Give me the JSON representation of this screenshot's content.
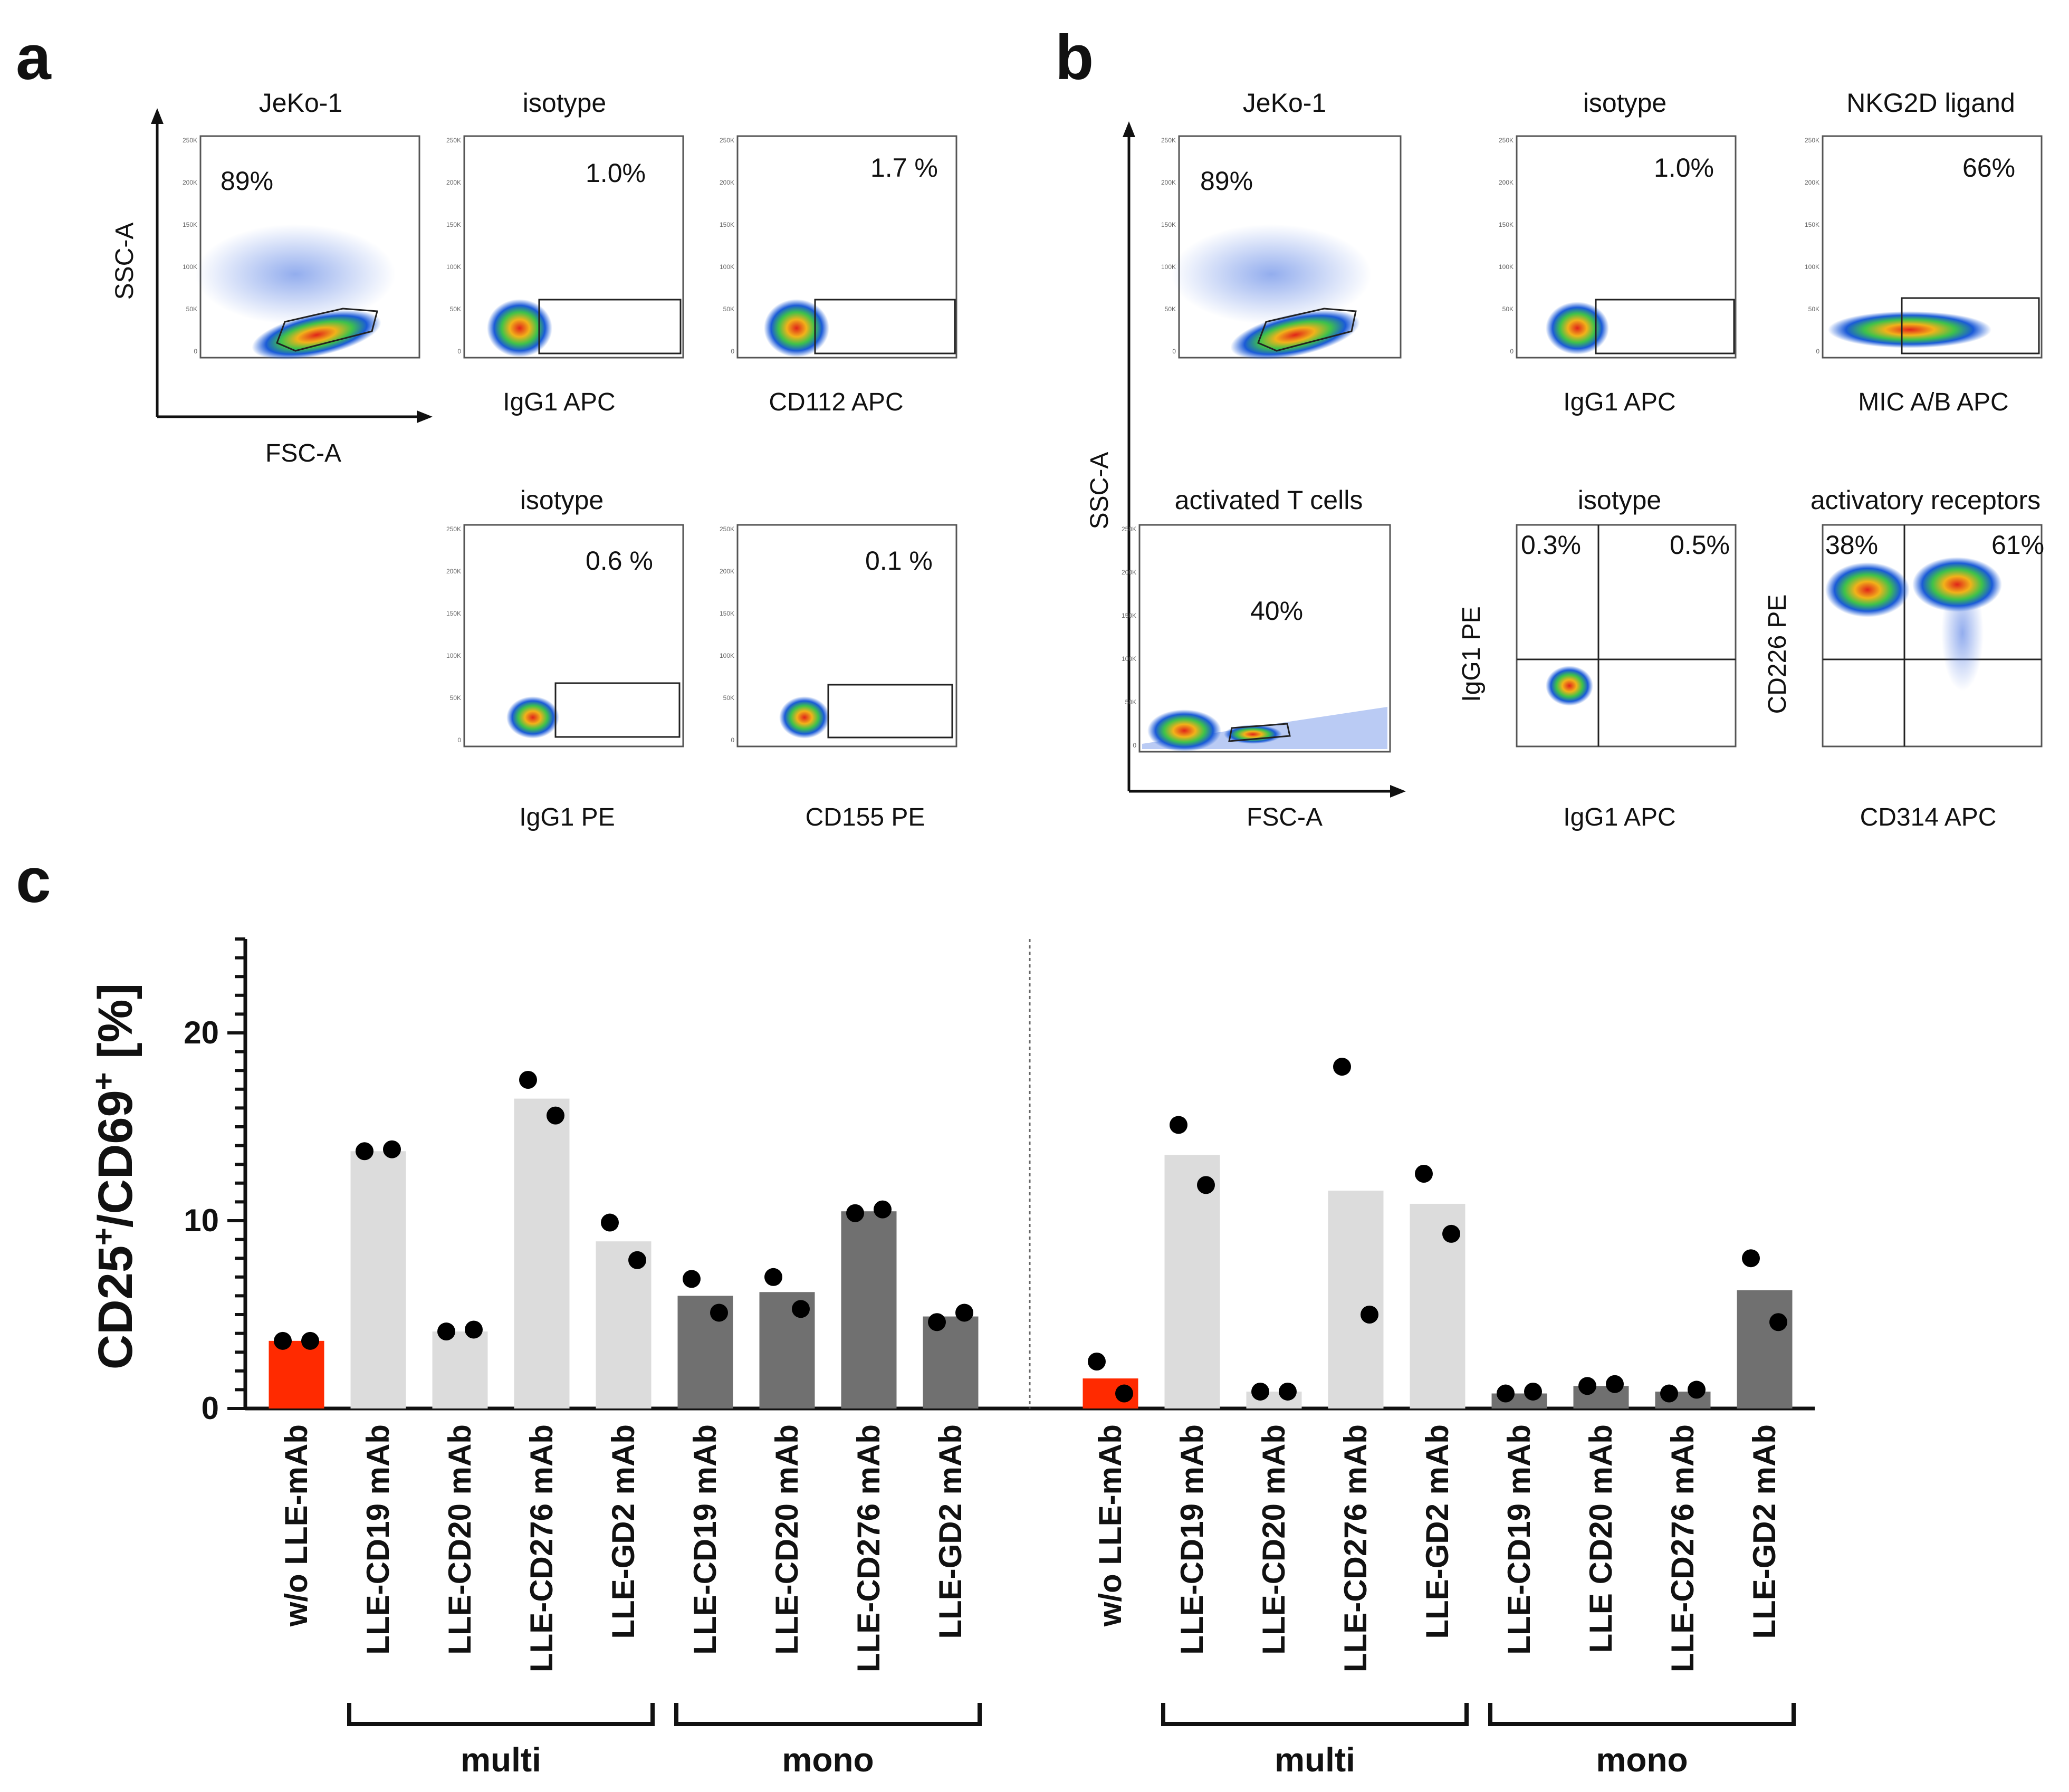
{
  "panels": {
    "a": "a",
    "b": "b",
    "c": "c"
  },
  "flow": {
    "ssc_label": "SSC-A",
    "fsc_label": "FSC-A",
    "panel_a": [
      {
        "title": "JeKo-1",
        "value": "89%",
        "xlabel": "FSC-A"
      },
      {
        "title": "isotype",
        "value": "1.0%",
        "xlabel": "IgG1 APC"
      },
      {
        "title": "",
        "value": "1.7 %",
        "xlabel": "CD112 APC"
      },
      {
        "title": "isotype",
        "value": "0.6 %",
        "xlabel": "IgG1 PE"
      },
      {
        "title": "",
        "value": "0.1 %",
        "xlabel": "CD155 PE"
      }
    ],
    "panel_b": [
      {
        "title": "JeKo-1",
        "value": "89%"
      },
      {
        "title": "isotype",
        "value": "1.0%",
        "xlabel": "IgG1 APC"
      },
      {
        "title": "NKG2D ligand",
        "value": "66%",
        "xlabel": "MIC A/B APC"
      },
      {
        "title": "activated T cells",
        "value": "40%",
        "xlabel": "FSC-A"
      },
      {
        "title": "isotype",
        "q1": "0.3%",
        "q2": "0.5%",
        "xlabel": "IgG1 APC",
        "ylabel": "IgG1 PE"
      },
      {
        "title": "activatory receptors",
        "q1": "38%",
        "q2": "61%",
        "xlabel": "CD314 APC",
        "ylabel": "CD226 PE"
      }
    ],
    "ticks": [
      "250K",
      "200K",
      "150K",
      "100K",
      "50K",
      "0"
    ]
  },
  "chart_data": {
    "type": "bar",
    "title": "",
    "ylabel_main": "CD25",
    "ylabel_sup1": "+",
    "ylabel_mid": "/CD69",
    "ylabel_sup2": "+",
    "ylabel_tail": " [%]",
    "ylim": [
      0,
      25
    ],
    "yticks": [
      "0",
      "10",
      "20"
    ],
    "categories": [
      "w/o LLE-mAb",
      "LLE-CD19 mAb",
      "LLE-CD20 mAb",
      "LLE-CD276 mAb",
      "LLE-GD2 mAb",
      "LLE-CD19 mAb",
      "LLE-CD20 mAb",
      "LLE-CD276 mAb",
      "LLE-GD2 mAb",
      "w/o LLE-mAb",
      "LLE-CD19 mAb",
      "LLE-CD20 mAb",
      "LLE-CD276 mAb",
      "LLE-GD2 mAb",
      "LLE-CD19 mAb",
      "LLE CD20 mAb",
      "LLE-CD276 mAb",
      "LLE-GD2 mAb"
    ],
    "values": [
      3.6,
      13.7,
      4.1,
      16.5,
      8.9,
      6.0,
      6.2,
      10.5,
      4.9,
      1.6,
      13.5,
      0.9,
      11.6,
      10.9,
      0.8,
      1.2,
      0.9,
      6.3
    ],
    "points": [
      [
        3.6,
        3.6
      ],
      [
        13.7,
        13.8
      ],
      [
        4.1,
        4.2
      ],
      [
        17.5,
        15.6
      ],
      [
        9.9,
        7.9
      ],
      [
        6.9,
        5.1
      ],
      [
        7.0,
        5.3
      ],
      [
        10.4,
        10.6
      ],
      [
        4.6,
        5.1
      ],
      [
        2.5,
        0.8
      ],
      [
        15.1,
        11.9
      ],
      [
        0.9,
        0.9
      ],
      [
        18.2,
        5.0
      ],
      [
        12.5,
        9.3
      ],
      [
        0.8,
        0.9
      ],
      [
        1.2,
        1.3
      ],
      [
        0.8,
        1.0
      ],
      [
        8.0,
        4.6
      ]
    ],
    "bar_kind": [
      "ctrl",
      "multi",
      "multi",
      "multi",
      "multi",
      "mono",
      "mono",
      "mono",
      "mono",
      "ctrl",
      "multi",
      "multi",
      "multi",
      "multi",
      "mono",
      "mono",
      "mono",
      "mono"
    ],
    "colors": {
      "ctrl": "#ff2a00",
      "multi": "#dcdcdc",
      "mono": "#707070"
    },
    "groups": [
      "multi",
      "mono",
      "multi",
      "mono"
    ]
  }
}
